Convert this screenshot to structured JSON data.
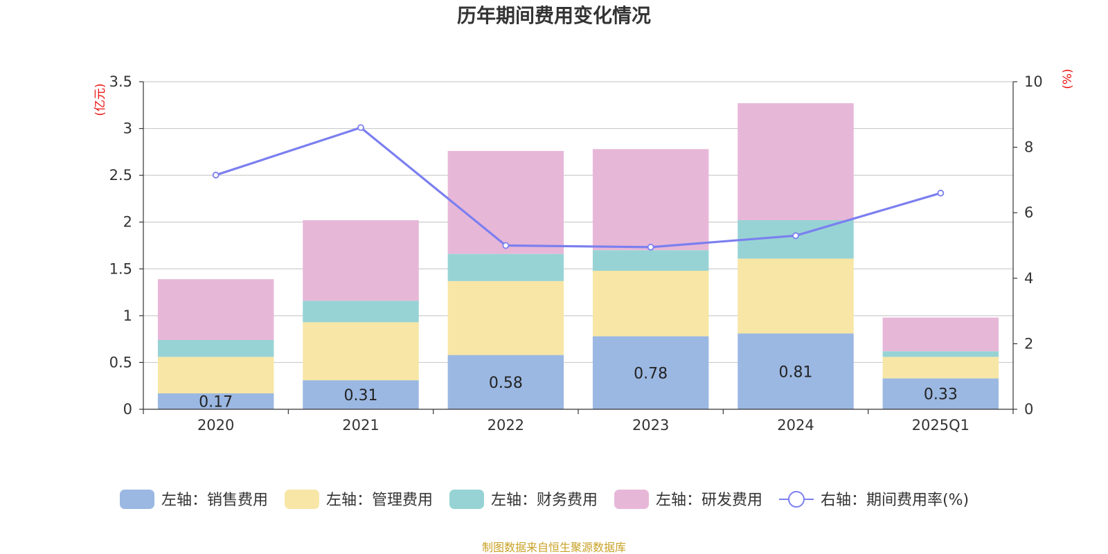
{
  "chart_data": {
    "type": "bar",
    "stacked": true,
    "title": "历年期间费用变化情况",
    "categories": [
      "2020",
      "2021",
      "2022",
      "2023",
      "2024",
      "2025Q1"
    ],
    "y_left": {
      "unit": "(亿元)",
      "ylim": [
        0,
        3.5
      ],
      "ticks": [
        "0",
        "0.5",
        "1",
        "1.5",
        "2",
        "2.5",
        "3",
        "3.5"
      ]
    },
    "y_right": {
      "unit": "(%)",
      "ylim": [
        0,
        10
      ],
      "ticks": [
        "0",
        "2",
        "4",
        "6",
        "8",
        "10"
      ]
    },
    "grid": true,
    "series": [
      {
        "name": "左轴：销售费用",
        "axis": "left",
        "color": "#9bb8e2",
        "values": [
          0.17,
          0.31,
          0.58,
          0.78,
          0.81,
          0.33
        ],
        "labels": [
          "0.17",
          "0.31",
          "0.58",
          "0.78",
          "0.81",
          "0.33"
        ]
      },
      {
        "name": "左轴：管理费用",
        "axis": "left",
        "color": "#f7e6a6",
        "values": [
          0.39,
          0.62,
          0.79,
          0.7,
          0.8,
          0.23
        ]
      },
      {
        "name": "左轴：财务费用",
        "axis": "left",
        "color": "#97d3d4",
        "values": [
          0.18,
          0.23,
          0.29,
          0.22,
          0.41,
          0.06
        ]
      },
      {
        "name": "左轴：研发费用",
        "axis": "left",
        "color": "#e7b7d8",
        "values": [
          0.65,
          0.86,
          1.1,
          1.08,
          1.25,
          0.36
        ]
      },
      {
        "name": "右轴：期间费用率(%)",
        "axis": "right",
        "type": "line",
        "color": "#7b7fef",
        "values": [
          7.15,
          8.6,
          5.0,
          4.95,
          5.3,
          6.6
        ]
      }
    ],
    "legend_position": "bottom",
    "source": "制图数据来自恒生聚源数据库"
  }
}
